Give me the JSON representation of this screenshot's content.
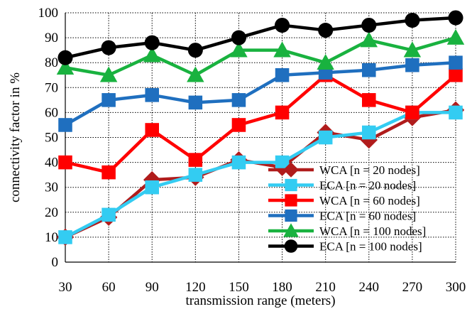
{
  "chart_data": {
    "type": "line",
    "title": "",
    "xlabel": "transmission range (meters)",
    "ylabel": "connectivity factor in %",
    "x": [
      30,
      60,
      90,
      120,
      150,
      180,
      210,
      240,
      270,
      300
    ],
    "ylim": [
      0,
      100
    ],
    "yticks": [
      0,
      10,
      20,
      30,
      40,
      50,
      60,
      70,
      80,
      90,
      100
    ],
    "grid": true,
    "legend_position": "bottom-right",
    "series": [
      {
        "name": "WCA [n = 20 nodes]",
        "color": "#b01c1c",
        "marker": "diamond",
        "values": [
          10,
          18,
          33,
          34,
          41,
          38,
          52,
          49,
          58,
          61
        ]
      },
      {
        "name": "ECA [n = 20 nodes]",
        "color": "#33ccf2",
        "marker": "square",
        "values": [
          10,
          19,
          30,
          35,
          40,
          40,
          50,
          52,
          60,
          60
        ]
      },
      {
        "name": "WCA [n = 60 nodes]",
        "color": "#ff0000",
        "marker": "square",
        "values": [
          40,
          36,
          53,
          41,
          55,
          60,
          75,
          65,
          60,
          75
        ]
      },
      {
        "name": "ECA [n = 60 nodes]",
        "color": "#1f6fbf",
        "marker": "square",
        "values": [
          55,
          65,
          67,
          64,
          65,
          75,
          76,
          77,
          79,
          80
        ]
      },
      {
        "name": "WCA [n = 100 nodes]",
        "color": "#19b23f",
        "marker": "triangle",
        "values": [
          78,
          75,
          83,
          75,
          85,
          85,
          80,
          89,
          85,
          90
        ]
      },
      {
        "name": "ECA [n = 100 nodes]",
        "color": "#000000",
        "marker": "circle",
        "values": [
          82,
          86,
          88,
          85,
          90,
          95,
          93,
          95,
          97,
          98
        ]
      }
    ]
  }
}
